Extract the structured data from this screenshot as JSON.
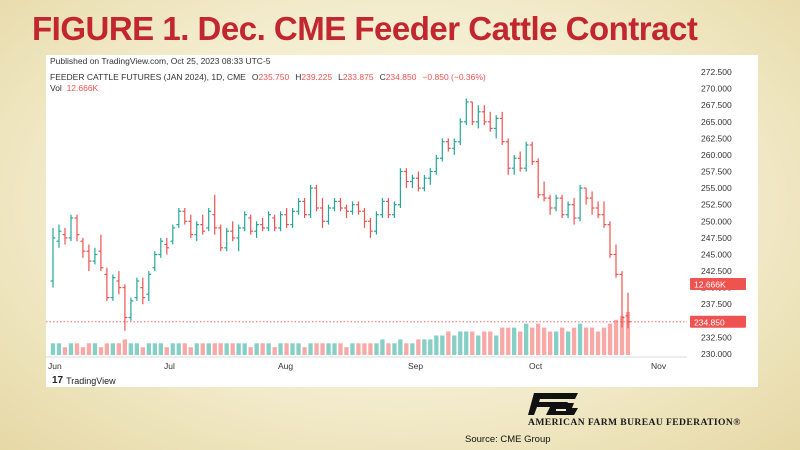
{
  "slide": {
    "title": "FIGURE 1. Dec. CME Feeder Cattle Contract",
    "source": "Source: CME Group",
    "organization": "AMERICAN FARM BUREAU FEDERATION",
    "org_mark": "®"
  },
  "tradingview": {
    "published": "Published on TradingView.com, Oct 25, 2023 08:33 UTC-5",
    "symbol": "FEEDER CATTLE FUTURES (JAN 2024), 1D, CME",
    "ohlc": {
      "open_label": "O",
      "open": "235.750",
      "high_label": "H",
      "high": "239.225",
      "low_label": "L",
      "low": "233.875",
      "close_label": "C",
      "close": "234.850",
      "change": "−0.850 (−0.36%)"
    },
    "vol_label": "Vol",
    "vol_value": "12.666K",
    "brand": "TradingView",
    "vol_badge": "12.666K",
    "price_badge": "234.850"
  },
  "colors": {
    "up": "#26a69a",
    "down": "#ef5350",
    "up_volume": "#85cfc5",
    "down_volume": "#f7a9a7",
    "badge": "#ef5350",
    "title": "#c2262e"
  },
  "chart_data": {
    "type": "ohlc-bar",
    "x_axis_labels": [
      "Jun",
      "Jul",
      "Aug",
      "Sep",
      "Oct",
      "Nov"
    ],
    "y_axis_labels": [
      "272.500",
      "270.000",
      "267.500",
      "265.000",
      "262.500",
      "260.000",
      "257.500",
      "255.000",
      "252.500",
      "250.000",
      "247.500",
      "245.000",
      "242.500",
      "240.000",
      "237.500",
      "235.000",
      "232.500",
      "230.000"
    ],
    "ylim": [
      230.0,
      272.5
    ],
    "grid": false,
    "last_close": 234.85,
    "bars": [
      {
        "o": 241.0,
        "h": 249.0,
        "l": 240.0,
        "c": 247.5,
        "v": 3
      },
      {
        "o": 247.0,
        "h": 249.5,
        "l": 246.0,
        "c": 248.5,
        "v": 3
      },
      {
        "o": 248.0,
        "h": 249.0,
        "l": 246.5,
        "c": 247.5,
        "v": 2
      },
      {
        "o": 247.5,
        "h": 251.0,
        "l": 247.0,
        "c": 250.5,
        "v": 3
      },
      {
        "o": 250.5,
        "h": 251.0,
        "l": 247.0,
        "c": 248.0,
        "v": 3
      },
      {
        "o": 247.0,
        "h": 247.5,
        "l": 244.5,
        "c": 245.5,
        "v": 2
      },
      {
        "o": 245.5,
        "h": 246.5,
        "l": 242.5,
        "c": 244.0,
        "v": 3
      },
      {
        "o": 244.0,
        "h": 246.0,
        "l": 243.5,
        "c": 245.0,
        "v": 3
      },
      {
        "o": 245.5,
        "h": 248.0,
        "l": 242.5,
        "c": 243.0,
        "v": 2
      },
      {
        "o": 242.0,
        "h": 243.0,
        "l": 238.0,
        "c": 238.5,
        "v": 3
      },
      {
        "o": 238.5,
        "h": 242.0,
        "l": 238.0,
        "c": 241.5,
        "v": 3
      },
      {
        "o": 241.0,
        "h": 242.5,
        "l": 239.0,
        "c": 240.0,
        "v": 3
      },
      {
        "o": 240.0,
        "h": 240.5,
        "l": 233.5,
        "c": 235.5,
        "v": 4
      },
      {
        "o": 235.5,
        "h": 238.5,
        "l": 235.0,
        "c": 238.0,
        "v": 3
      },
      {
        "o": 238.5,
        "h": 241.5,
        "l": 238.0,
        "c": 241.0,
        "v": 3
      },
      {
        "o": 240.0,
        "h": 241.5,
        "l": 237.5,
        "c": 238.5,
        "v": 2
      },
      {
        "o": 239.0,
        "h": 242.5,
        "l": 238.0,
        "c": 242.0,
        "v": 3
      },
      {
        "o": 243.0,
        "h": 245.5,
        "l": 242.5,
        "c": 245.0,
        "v": 3
      },
      {
        "o": 245.0,
        "h": 247.5,
        "l": 244.5,
        "c": 247.0,
        "v": 3
      },
      {
        "o": 246.5,
        "h": 247.5,
        "l": 245.0,
        "c": 246.0,
        "v": 2
      },
      {
        "o": 247.0,
        "h": 249.5,
        "l": 246.5,
        "c": 249.0,
        "v": 3
      },
      {
        "o": 249.5,
        "h": 252.0,
        "l": 249.0,
        "c": 251.5,
        "v": 3
      },
      {
        "o": 251.5,
        "h": 252.0,
        "l": 249.5,
        "c": 250.0,
        "v": 3
      },
      {
        "o": 250.0,
        "h": 251.0,
        "l": 247.5,
        "c": 248.0,
        "v": 2
      },
      {
        "o": 248.0,
        "h": 250.0,
        "l": 247.0,
        "c": 249.5,
        "v": 3
      },
      {
        "o": 249.5,
        "h": 251.0,
        "l": 248.0,
        "c": 248.5,
        "v": 3
      },
      {
        "o": 249.0,
        "h": 252.0,
        "l": 248.5,
        "c": 251.5,
        "v": 3
      },
      {
        "o": 251.0,
        "h": 254.0,
        "l": 248.0,
        "c": 249.0,
        "v": 3
      },
      {
        "o": 249.0,
        "h": 249.5,
        "l": 245.5,
        "c": 246.0,
        "v": 3
      },
      {
        "o": 246.0,
        "h": 249.0,
        "l": 245.5,
        "c": 248.5,
        "v": 3
      },
      {
        "o": 248.5,
        "h": 250.0,
        "l": 247.0,
        "c": 247.5,
        "v": 3
      },
      {
        "o": 247.5,
        "h": 249.5,
        "l": 245.5,
        "c": 249.0,
        "v": 3
      },
      {
        "o": 249.0,
        "h": 251.5,
        "l": 248.5,
        "c": 251.0,
        "v": 3
      },
      {
        "o": 250.5,
        "h": 251.0,
        "l": 248.0,
        "c": 248.5,
        "v": 2
      },
      {
        "o": 248.5,
        "h": 250.0,
        "l": 247.5,
        "c": 249.5,
        "v": 3
      },
      {
        "o": 249.5,
        "h": 250.5,
        "l": 248.5,
        "c": 249.0,
        "v": 3
      },
      {
        "o": 249.0,
        "h": 251.5,
        "l": 248.5,
        "c": 251.0,
        "v": 3
      },
      {
        "o": 250.5,
        "h": 251.0,
        "l": 248.5,
        "c": 249.0,
        "v": 2
      },
      {
        "o": 249.0,
        "h": 251.5,
        "l": 248.5,
        "c": 251.0,
        "v": 3
      },
      {
        "o": 251.0,
        "h": 252.0,
        "l": 249.0,
        "c": 249.5,
        "v": 3
      },
      {
        "o": 249.5,
        "h": 252.0,
        "l": 249.0,
        "c": 251.5,
        "v": 3
      },
      {
        "o": 251.5,
        "h": 253.5,
        "l": 251.0,
        "c": 253.0,
        "v": 3
      },
      {
        "o": 253.0,
        "h": 253.5,
        "l": 250.5,
        "c": 251.0,
        "v": 2
      },
      {
        "o": 251.0,
        "h": 255.5,
        "l": 250.5,
        "c": 255.0,
        "v": 3
      },
      {
        "o": 255.0,
        "h": 255.5,
        "l": 251.5,
        "c": 252.0,
        "v": 3
      },
      {
        "o": 252.0,
        "h": 253.5,
        "l": 249.0,
        "c": 250.0,
        "v": 3
      },
      {
        "o": 250.0,
        "h": 252.5,
        "l": 249.5,
        "c": 252.0,
        "v": 3
      },
      {
        "o": 252.0,
        "h": 253.5,
        "l": 251.5,
        "c": 253.0,
        "v": 3
      },
      {
        "o": 253.0,
        "h": 253.5,
        "l": 251.5,
        "c": 252.0,
        "v": 3
      },
      {
        "o": 252.0,
        "h": 252.5,
        "l": 250.5,
        "c": 251.5,
        "v": 2
      },
      {
        "o": 251.5,
        "h": 253.0,
        "l": 251.0,
        "c": 252.5,
        "v": 3
      },
      {
        "o": 252.5,
        "h": 253.0,
        "l": 251.0,
        "c": 251.5,
        "v": 3
      },
      {
        "o": 251.5,
        "h": 252.0,
        "l": 249.0,
        "c": 250.0,
        "v": 3
      },
      {
        "o": 250.0,
        "h": 250.5,
        "l": 247.5,
        "c": 248.5,
        "v": 3
      },
      {
        "o": 248.5,
        "h": 251.5,
        "l": 248.0,
        "c": 251.0,
        "v": 3
      },
      {
        "o": 251.0,
        "h": 253.5,
        "l": 250.5,
        "c": 253.0,
        "v": 4
      },
      {
        "o": 253.0,
        "h": 253.5,
        "l": 250.5,
        "c": 251.0,
        "v": 3
      },
      {
        "o": 251.0,
        "h": 253.0,
        "l": 250.5,
        "c": 252.5,
        "v": 3
      },
      {
        "o": 252.5,
        "h": 258.0,
        "l": 252.0,
        "c": 257.5,
        "v": 4
      },
      {
        "o": 257.5,
        "h": 258.0,
        "l": 255.0,
        "c": 256.0,
        "v": 3
      },
      {
        "o": 256.0,
        "h": 257.0,
        "l": 255.0,
        "c": 256.5,
        "v": 3
      },
      {
        "o": 256.5,
        "h": 257.5,
        "l": 254.5,
        "c": 255.0,
        "v": 4
      },
      {
        "o": 255.0,
        "h": 257.0,
        "l": 254.5,
        "c": 256.5,
        "v": 4
      },
      {
        "o": 256.5,
        "h": 258.0,
        "l": 255.5,
        "c": 257.5,
        "v": 4
      },
      {
        "o": 257.5,
        "h": 260.0,
        "l": 257.0,
        "c": 259.5,
        "v": 5
      },
      {
        "o": 259.5,
        "h": 262.5,
        "l": 259.0,
        "c": 262.0,
        "v": 5
      },
      {
        "o": 262.0,
        "h": 262.5,
        "l": 260.5,
        "c": 261.0,
        "v": 6
      },
      {
        "o": 261.0,
        "h": 262.5,
        "l": 260.0,
        "c": 262.0,
        "v": 5
      },
      {
        "o": 262.0,
        "h": 265.5,
        "l": 261.5,
        "c": 265.0,
        "v": 6
      },
      {
        "o": 265.0,
        "h": 268.5,
        "l": 264.5,
        "c": 268.0,
        "v": 6
      },
      {
        "o": 268.0,
        "h": 268.0,
        "l": 264.5,
        "c": 265.0,
        "v": 6
      },
      {
        "o": 265.0,
        "h": 267.5,
        "l": 264.0,
        "c": 266.5,
        "v": 5
      },
      {
        "o": 266.5,
        "h": 267.5,
        "l": 264.5,
        "c": 265.0,
        "v": 6
      },
      {
        "o": 265.0,
        "h": 266.5,
        "l": 263.5,
        "c": 264.0,
        "v": 6
      },
      {
        "o": 264.0,
        "h": 266.0,
        "l": 262.5,
        "c": 265.5,
        "v": 5
      },
      {
        "o": 265.5,
        "h": 266.5,
        "l": 261.5,
        "c": 262.0,
        "v": 7
      },
      {
        "o": 262.0,
        "h": 262.5,
        "l": 257.0,
        "c": 258.0,
        "v": 7
      },
      {
        "o": 258.0,
        "h": 260.0,
        "l": 257.0,
        "c": 259.5,
        "v": 7
      },
      {
        "o": 259.5,
        "h": 260.5,
        "l": 257.5,
        "c": 258.0,
        "v": 6
      },
      {
        "o": 258.0,
        "h": 262.0,
        "l": 257.5,
        "c": 261.5,
        "v": 8
      },
      {
        "o": 261.5,
        "h": 262.0,
        "l": 258.5,
        "c": 259.0,
        "v": 7
      },
      {
        "o": 259.0,
        "h": 259.5,
        "l": 253.5,
        "c": 254.0,
        "v": 8
      },
      {
        "o": 254.0,
        "h": 256.0,
        "l": 253.0,
        "c": 253.5,
        "v": 7
      },
      {
        "o": 253.5,
        "h": 254.0,
        "l": 251.0,
        "c": 252.0,
        "v": 6
      },
      {
        "o": 252.0,
        "h": 254.0,
        "l": 251.5,
        "c": 253.5,
        "v": 6
      },
      {
        "o": 253.5,
        "h": 254.0,
        "l": 250.5,
        "c": 251.0,
        "v": 7
      },
      {
        "o": 251.0,
        "h": 253.0,
        "l": 250.5,
        "c": 252.5,
        "v": 6
      },
      {
        "o": 252.5,
        "h": 253.5,
        "l": 249.5,
        "c": 250.5,
        "v": 7
      },
      {
        "o": 250.5,
        "h": 255.5,
        "l": 250.0,
        "c": 255.0,
        "v": 8
      },
      {
        "o": 255.0,
        "h": 255.0,
        "l": 252.5,
        "c": 253.5,
        "v": 7
      },
      {
        "o": 253.5,
        "h": 254.5,
        "l": 251.0,
        "c": 252.0,
        "v": 7
      },
      {
        "o": 252.0,
        "h": 253.0,
        "l": 250.5,
        "c": 251.0,
        "v": 6
      },
      {
        "o": 251.0,
        "h": 253.0,
        "l": 249.0,
        "c": 249.5,
        "v": 7
      },
      {
        "o": 249.5,
        "h": 250.0,
        "l": 244.5,
        "c": 245.0,
        "v": 8
      },
      {
        "o": 245.0,
        "h": 246.5,
        "l": 241.5,
        "c": 242.0,
        "v": 9
      },
      {
        "o": 242.0,
        "h": 242.5,
        "l": 234.0,
        "c": 235.5,
        "v": 10
      },
      {
        "o": 235.75,
        "h": 239.225,
        "l": 233.875,
        "c": 234.85,
        "v": 11
      }
    ]
  }
}
